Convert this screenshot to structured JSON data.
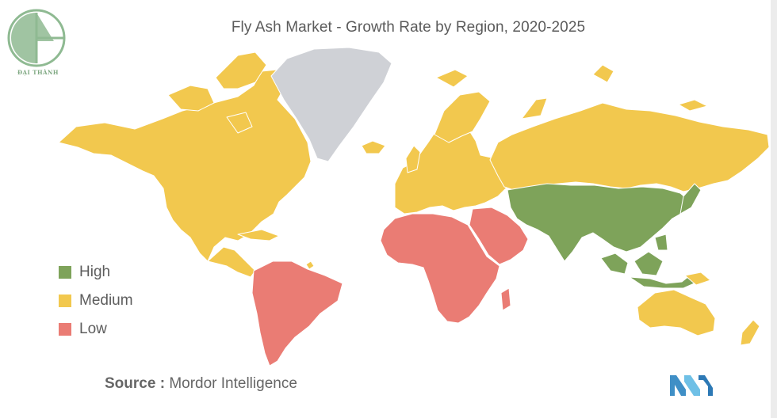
{
  "title": "Fly Ash Market - Growth Rate by Region, 2020-2025",
  "logo": {
    "caption": "ĐẠI THÀNH"
  },
  "legend": [
    {
      "label": "High",
      "color": "#7ea35a"
    },
    {
      "label": "Medium",
      "color": "#f2c84e"
    },
    {
      "label": "Low",
      "color": "#ea7c74"
    }
  ],
  "no_data_color": "#cfd1d6",
  "regions": {
    "north_america": "Medium",
    "greenland": "no data",
    "south_america": "Low",
    "europe": "Medium",
    "russia": "Medium",
    "africa": "Low",
    "middle_east": "Low",
    "asia_pacific": "High",
    "australia": "Medium"
  },
  "source": {
    "label": "Source :",
    "text": "Mordor Intelligence"
  },
  "brand_icon": "mordor-intelligence-logo-icon"
}
